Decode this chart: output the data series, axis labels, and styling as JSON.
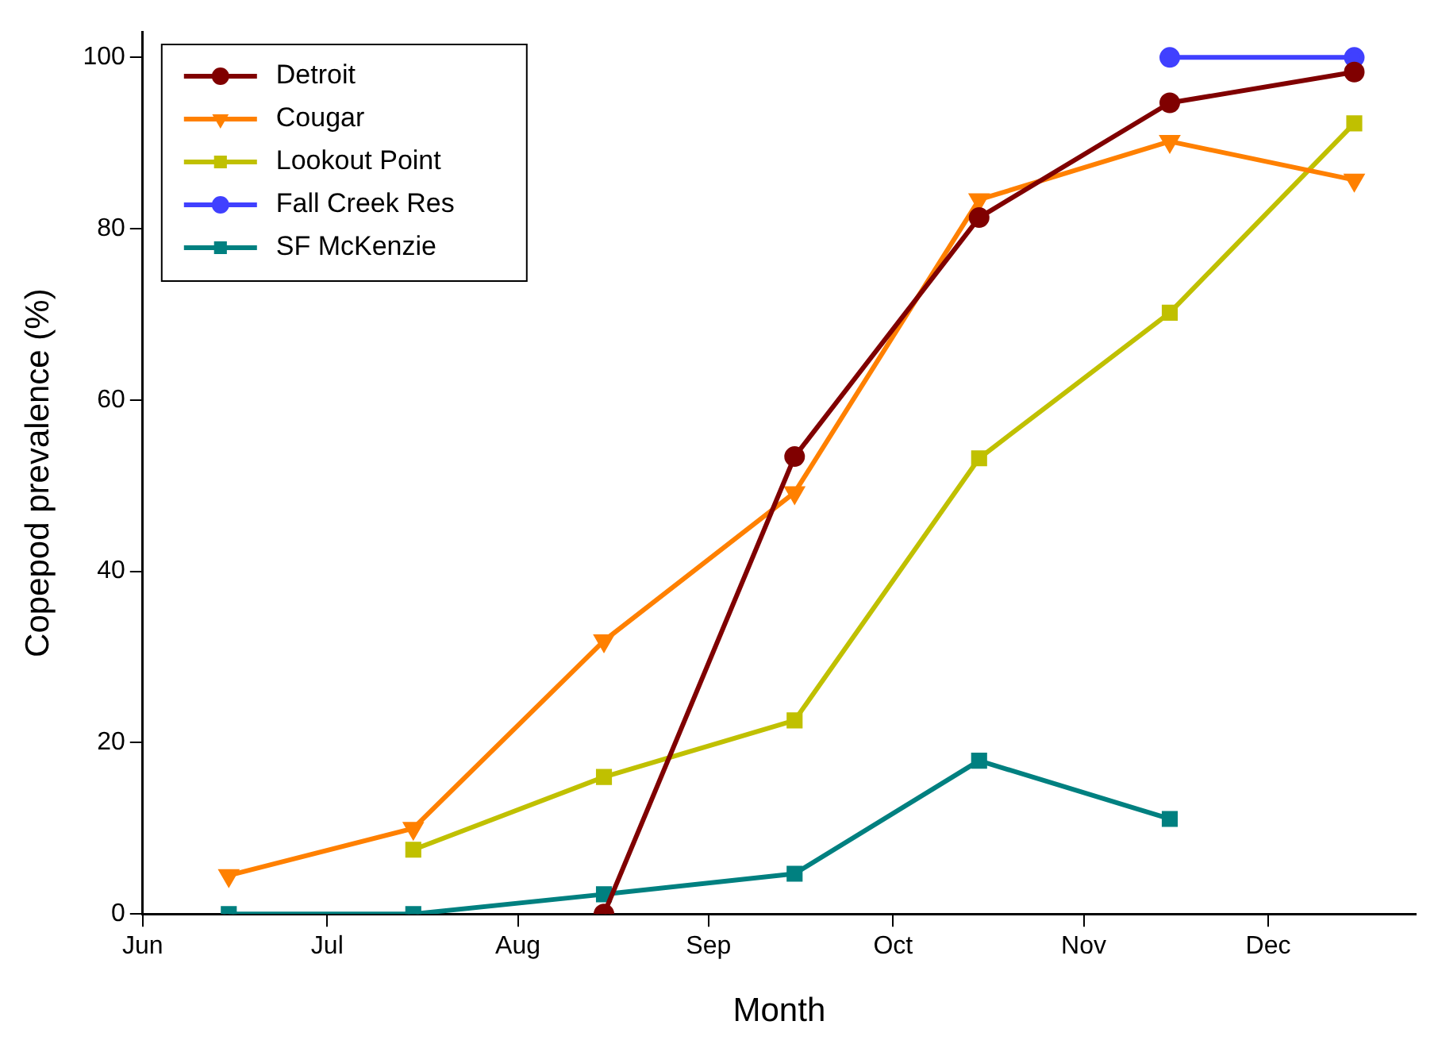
{
  "chart_data": {
    "type": "line",
    "xlabel": "Month",
    "ylabel": "Copepod prevalence (%)",
    "xlim": [
      "--06-01",
      "--12-25"
    ],
    "xticks": [
      {
        "value": "--06-01",
        "label": "Jun"
      },
      {
        "value": "--07-01",
        "label": "Jul"
      },
      {
        "value": "--08-01",
        "label": "Aug"
      },
      {
        "value": "--09-01",
        "label": "Sep"
      },
      {
        "value": "--10-01",
        "label": "Oct"
      },
      {
        "value": "--11-01",
        "label": "Nov"
      },
      {
        "value": "--12-01",
        "label": "Dec"
      }
    ],
    "ylim": [
      0,
      103
    ],
    "yticks": [
      0,
      20,
      40,
      60,
      80,
      100
    ],
    "grid": false,
    "legend": "top left",
    "series": [
      {
        "name": "Detroit",
        "color": "#800000",
        "marker": "circle",
        "x": [
          "--08-15",
          "--09-15",
          "--10-15",
          "--11-15",
          "--12-15"
        ],
        "values": [
          0,
          53.4,
          81.3,
          94.7,
          98.3
        ]
      },
      {
        "name": "Cougar",
        "color": "#ff8000",
        "marker": "triangle",
        "x": [
          "--06-15",
          "--07-15",
          "--08-15",
          "--09-15",
          "--10-15",
          "--11-15",
          "--12-15"
        ],
        "values": [
          4.5,
          10,
          31.9,
          49.2,
          83.4,
          90.2,
          85.7
        ]
      },
      {
        "name": "Lookout Point",
        "color": "#c0c000",
        "marker": "square",
        "x": [
          "--07-15",
          "--08-15",
          "--09-15",
          "--10-15",
          "--11-15",
          "--12-15"
        ],
        "values": [
          7.5,
          16,
          22.6,
          53.2,
          70.2,
          92.3
        ]
      },
      {
        "name": "Fall Creek Res",
        "color": "#4040ff",
        "marker": "circle",
        "x": [
          "--11-15",
          "--12-15"
        ],
        "values": [
          100,
          100
        ]
      },
      {
        "name": "SF McKenzie",
        "color": "#008080",
        "marker": "square",
        "x": [
          "--06-15",
          "--07-15",
          "--08-15",
          "--09-15",
          "--10-15",
          "--11-15"
        ],
        "values": [
          0,
          0,
          2.3,
          4.7,
          17.9,
          11.1
        ]
      }
    ]
  }
}
